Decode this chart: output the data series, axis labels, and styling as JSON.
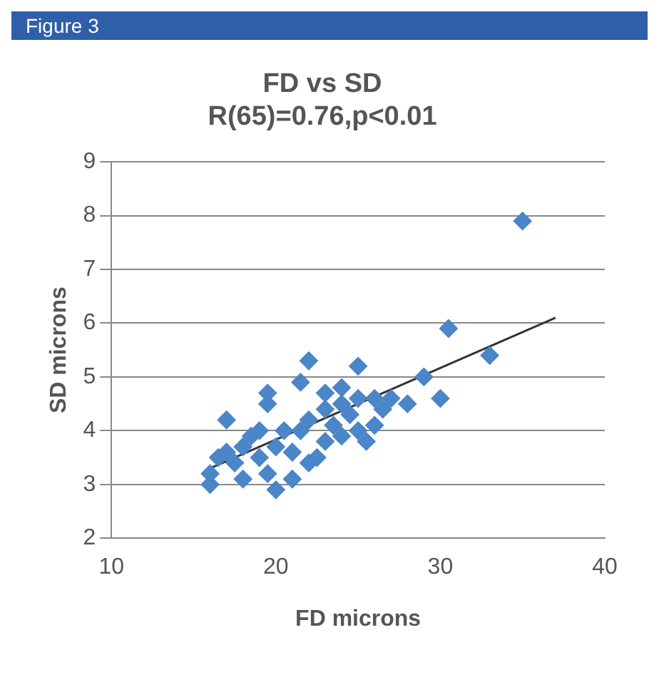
{
  "chart_data": {
    "type": "scatter",
    "title": [
      "FD vs SD",
      "R(65)=0.76,p<0.01"
    ],
    "xlabel": "FD microns",
    "ylabel": "SD microns",
    "annotations": [
      "Figure 3"
    ],
    "xlim": [
      10,
      40
    ],
    "xticks": [
      10,
      20,
      30,
      40
    ],
    "ylim": [
      2,
      9
    ],
    "yticks": [
      2,
      3,
      4,
      5,
      6,
      7,
      8,
      9
    ],
    "grid": "y",
    "legend": false,
    "marker": "diamond",
    "series": [
      {
        "color": "#4a86c8",
        "x": [
          35,
          30.5,
          33,
          29,
          30,
          28,
          27,
          26.5,
          25,
          24,
          22,
          21.5,
          19.5,
          19.5,
          17,
          16,
          16,
          16.5,
          17,
          17.5,
          18,
          18,
          18.5,
          19,
          19,
          19.5,
          20,
          20,
          20.5,
          21,
          21,
          21.5,
          22,
          22.5,
          23,
          23,
          23.5,
          24,
          24,
          24.5,
          25,
          25,
          25.5,
          26,
          26,
          23,
          22
        ],
        "values": [
          7.9,
          5.9,
          5.4,
          5.0,
          4.6,
          4.5,
          4.6,
          4.4,
          5.2,
          4.8,
          5.3,
          4.9,
          4.7,
          4.5,
          4.2,
          3.0,
          3.2,
          3.5,
          3.6,
          3.4,
          3.7,
          3.1,
          3.9,
          4.0,
          3.5,
          3.2,
          2.9,
          3.7,
          4.0,
          3.6,
          3.1,
          4.0,
          4.2,
          3.5,
          4.4,
          3.8,
          4.1,
          4.5,
          3.9,
          4.3,
          4.6,
          4.0,
          3.8,
          4.6,
          4.1,
          4.7,
          3.4
        ]
      },
      {
        "type": "line",
        "color": "#333333",
        "marker": "none",
        "x": [
          16,
          37
        ],
        "values": [
          3.3,
          6.1
        ]
      }
    ]
  }
}
